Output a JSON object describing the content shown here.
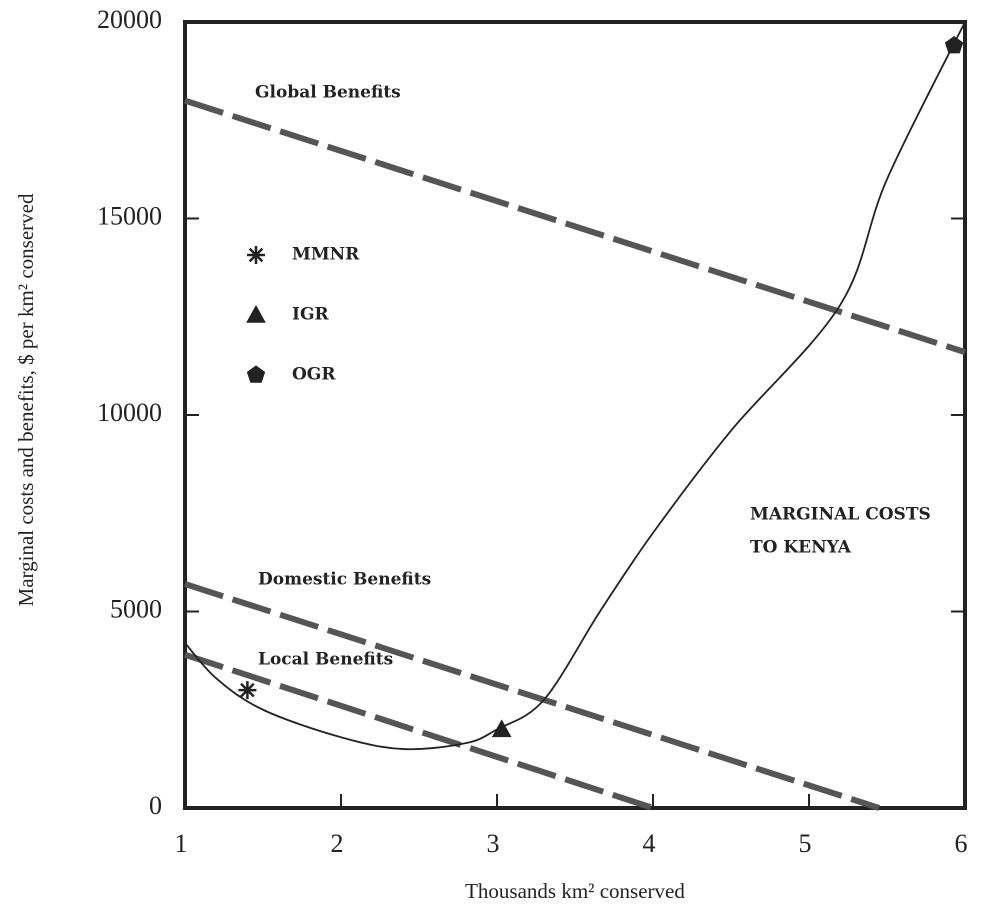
{
  "chart_data": {
    "type": "line",
    "xlabel": "Thousands km² conserved",
    "ylabel": "Marginal costs and benefits, $ per km² conserved",
    "xlim": [
      1,
      6
    ],
    "ylim": [
      0,
      20000
    ],
    "xticks": [
      1,
      2,
      3,
      4,
      5,
      6
    ],
    "yticks": [
      0,
      5000,
      10000,
      15000,
      20000
    ],
    "series": [
      {
        "name": "Global Benefits",
        "style": "dashed",
        "color": "#555555",
        "x": [
          1,
          6
        ],
        "values": [
          18000,
          11600
        ]
      },
      {
        "name": "Domestic Benefits",
        "style": "dashed",
        "color": "#555555",
        "x": [
          1,
          5.45
        ],
        "values": [
          5700,
          0
        ]
      },
      {
        "name": "Local Benefits",
        "style": "dashed",
        "color": "#555555",
        "x": [
          1,
          4
        ],
        "values": [
          3900,
          0
        ]
      },
      {
        "name_lines": [
          "MARGINAL COSTS",
          "TO KENYA"
        ],
        "style": "solid",
        "color": "#222222",
        "x": [
          1,
          1.2,
          1.5,
          2,
          2.4,
          2.8,
          3,
          3.3,
          3.66,
          4,
          4.5,
          5.2,
          5.5,
          6
        ],
        "values": [
          4200,
          3300,
          2500,
          1800,
          1500,
          1650,
          2000,
          2750,
          5000,
          7000,
          9600,
          12800,
          16000,
          20000
        ]
      }
    ],
    "points": [
      {
        "name": "MMNR",
        "marker": "star",
        "x": 1.4,
        "y": 3000
      },
      {
        "name": "IGR",
        "marker": "triangle",
        "x": 3.03,
        "y": 2000
      },
      {
        "name": "OGR",
        "marker": "pentagon",
        "x": 5.93,
        "y": 19400
      }
    ]
  }
}
